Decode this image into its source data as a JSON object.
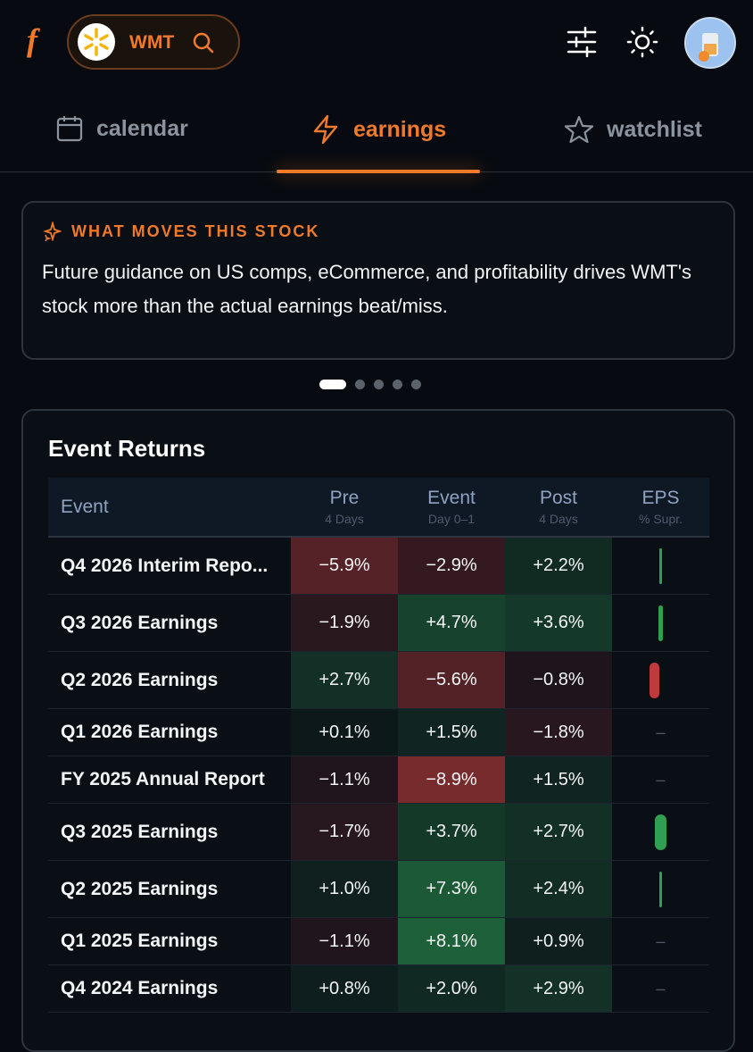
{
  "header": {
    "logo": "f",
    "ticker": "WMT"
  },
  "tabs": [
    {
      "label": "calendar"
    },
    {
      "label": "earnings",
      "active": true
    },
    {
      "label": "watchlist"
    }
  ],
  "insight": {
    "title": "WHAT MOVES THIS STOCK",
    "text": "Future guidance on US comps, eCommerce, and profitability drives WMT's stock more than the actual earnings beat/miss."
  },
  "table": {
    "title": "Event Returns",
    "columns": [
      {
        "label": "Event"
      },
      {
        "label": "Pre",
        "sub": "4 Days"
      },
      {
        "label": "Event",
        "sub": "Day 0–1"
      },
      {
        "label": "Post",
        "sub": "4 Days"
      },
      {
        "label": "EPS",
        "sub": "% Supr."
      }
    ],
    "rows": [
      {
        "event": "Q4 2026 Interim Repo...",
        "pre": "−5.9%",
        "day": "−2.9%",
        "post": "+2.2%",
        "eps": 1.5
      },
      {
        "event": "Q3 2026 Earnings",
        "pre": "−1.9%",
        "day": "+4.7%",
        "post": "+3.6%",
        "eps": 2
      },
      {
        "event": "Q2 2026 Earnings",
        "pre": "+2.7%",
        "day": "−5.6%",
        "post": "−0.8%",
        "eps": -4
      },
      {
        "event": "Q1 2026 Earnings",
        "pre": "+0.1%",
        "day": "+1.5%",
        "post": "−1.8%",
        "eps": "–"
      },
      {
        "event": "FY 2025 Annual Report",
        "pre": "−1.1%",
        "day": "−8.9%",
        "post": "+1.5%",
        "eps": "–"
      },
      {
        "event": "Q3 2025 Earnings",
        "pre": "−1.7%",
        "day": "+3.7%",
        "post": "+2.7%",
        "eps": 5
      },
      {
        "event": "Q2 2025 Earnings",
        "pre": "+1.0%",
        "day": "+7.3%",
        "post": "+2.4%",
        "eps": 1.5
      },
      {
        "event": "Q1 2025 Earnings",
        "pre": "−1.1%",
        "day": "+8.1%",
        "post": "+0.9%",
        "eps": "–"
      },
      {
        "event": "Q4 2024 Earnings",
        "pre": "+0.8%",
        "day": "+2.0%",
        "post": "+2.9%",
        "eps": "–"
      }
    ]
  }
}
